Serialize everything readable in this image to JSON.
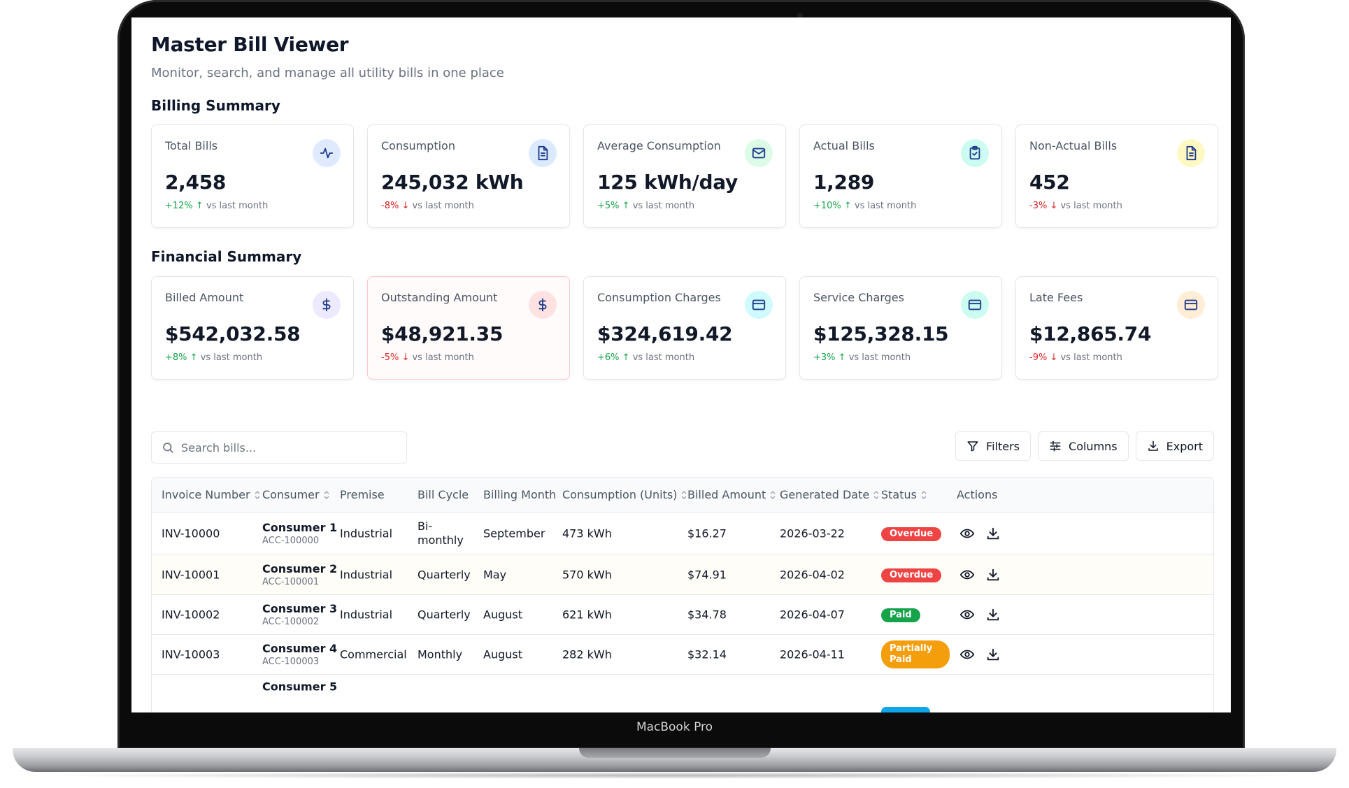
{
  "device": {
    "label": "MacBook Pro"
  },
  "header": {
    "title": "Master Bill Viewer",
    "subtitle": "Monitor, search, and manage all utility bills in one place"
  },
  "billing_summary": {
    "title": "Billing Summary",
    "cards": [
      {
        "label": "Total Bills",
        "value": "2,458",
        "delta": "+12% ↑",
        "delta_dir": "up",
        "note": "vs last month",
        "icon": "activity-icon",
        "icon_bg": "#e0eaff",
        "icon_color": "#1e3a8a"
      },
      {
        "label": "Consumption",
        "value": "245,032 kWh",
        "delta": "-8% ↓",
        "delta_dir": "down",
        "note": "vs last month",
        "icon": "document-icon",
        "icon_bg": "#dbeafe",
        "icon_color": "#1e3a8a"
      },
      {
        "label": "Average Consumption",
        "value": "125 kWh/day",
        "delta": "+5% ↑",
        "delta_dir": "up",
        "note": "vs last month",
        "icon": "mail-icon",
        "icon_bg": "#dcfce7",
        "icon_color": "#1e3a8a"
      },
      {
        "label": "Actual Bills",
        "value": "1,289",
        "delta": "+10% ↑",
        "delta_dir": "up",
        "note": "vs last month",
        "icon": "clipboard-check-icon",
        "icon_bg": "#ccfbf1",
        "icon_color": "#1e3a8a"
      },
      {
        "label": "Non-Actual Bills",
        "value": "452",
        "delta": "-3% ↓",
        "delta_dir": "down",
        "note": "vs last month",
        "icon": "document-icon",
        "icon_bg": "#fef9c3",
        "icon_color": "#1e3a8a"
      }
    ]
  },
  "financial_summary": {
    "title": "Financial Summary",
    "cards": [
      {
        "label": "Billed Amount",
        "value": "$542,032.58",
        "delta": "+8% ↑",
        "delta_dir": "up",
        "note": "vs last month",
        "icon": "dollar-icon",
        "icon_bg": "#ede9fe",
        "icon_color": "#1e3a8a"
      },
      {
        "label": "Outstanding Amount",
        "value": "$48,921.35",
        "delta": "-5% ↓",
        "delta_dir": "down",
        "note": "vs last month",
        "icon": "dollar-icon",
        "icon_bg": "#fee2e2",
        "icon_color": "#1e3a8a"
      },
      {
        "label": "Consumption Charges",
        "value": "$324,619.42",
        "delta": "+6% ↑",
        "delta_dir": "up",
        "note": "vs last month",
        "icon": "credit-card-icon",
        "icon_bg": "#cffafe",
        "icon_color": "#1e3a8a"
      },
      {
        "label": "Service Charges",
        "value": "$125,328.15",
        "delta": "+3% ↑",
        "delta_dir": "up",
        "note": "vs last month",
        "icon": "credit-card-icon",
        "icon_bg": "#ccfbf1",
        "icon_color": "#1e3a8a"
      },
      {
        "label": "Late Fees",
        "value": "$12,865.74",
        "delta": "-9% ↓",
        "delta_dir": "down",
        "note": "vs last month",
        "icon": "credit-card-icon",
        "icon_bg": "#ffedd5",
        "icon_color": "#1e3a8a"
      }
    ]
  },
  "toolbar": {
    "search_placeholder": "Search bills...",
    "filters_label": "Filters",
    "columns_label": "Columns",
    "export_label": "Export"
  },
  "table": {
    "columns": [
      {
        "label": "Invoice Number",
        "sortable": true
      },
      {
        "label": "Consumer",
        "sortable": true
      },
      {
        "label": "Premise",
        "sortable": false
      },
      {
        "label": "Bill Cycle",
        "sortable": false
      },
      {
        "label": "Billing Month",
        "sortable": false
      },
      {
        "label": "Consumption (Units)",
        "sortable": true
      },
      {
        "label": "Billed Amount",
        "sortable": true
      },
      {
        "label": "Generated Date",
        "sortable": true
      },
      {
        "label": "Status",
        "sortable": true
      },
      {
        "label": "Actions",
        "sortable": false
      }
    ],
    "rows": [
      {
        "invoice": "INV-10000",
        "consumer": "Consumer 1",
        "account": "ACC-100000",
        "premise": "Industrial",
        "cycle": "Bi-monthly",
        "month": "September",
        "consumption": "473 kWh",
        "amount": "$16.27",
        "date": "2026-03-22",
        "status": "Overdue",
        "status_kind": "overdue"
      },
      {
        "invoice": "INV-10001",
        "consumer": "Consumer 2",
        "account": "ACC-100001",
        "premise": "Industrial",
        "cycle": "Quarterly",
        "month": "May",
        "consumption": "570 kWh",
        "amount": "$74.91",
        "date": "2026-04-02",
        "status": "Overdue",
        "status_kind": "overdue"
      },
      {
        "invoice": "INV-10002",
        "consumer": "Consumer 3",
        "account": "ACC-100002",
        "premise": "Industrial",
        "cycle": "Quarterly",
        "month": "August",
        "consumption": "621 kWh",
        "amount": "$34.78",
        "date": "2026-04-07",
        "status": "Paid",
        "status_kind": "paid"
      },
      {
        "invoice": "INV-10003",
        "consumer": "Consumer 4",
        "account": "ACC-100003",
        "premise": "Commercial",
        "cycle": "Monthly",
        "month": "August",
        "consumption": "282 kWh",
        "amount": "$32.14",
        "date": "2026-04-11",
        "status": "Partially Paid",
        "status_kind": "partial"
      },
      {
        "invoice": "",
        "consumer": "Consumer 5",
        "account": "",
        "premise": "",
        "cycle": "",
        "month": "",
        "consumption": "",
        "amount": "",
        "date": "",
        "status": "",
        "status_kind": "pending"
      }
    ]
  }
}
